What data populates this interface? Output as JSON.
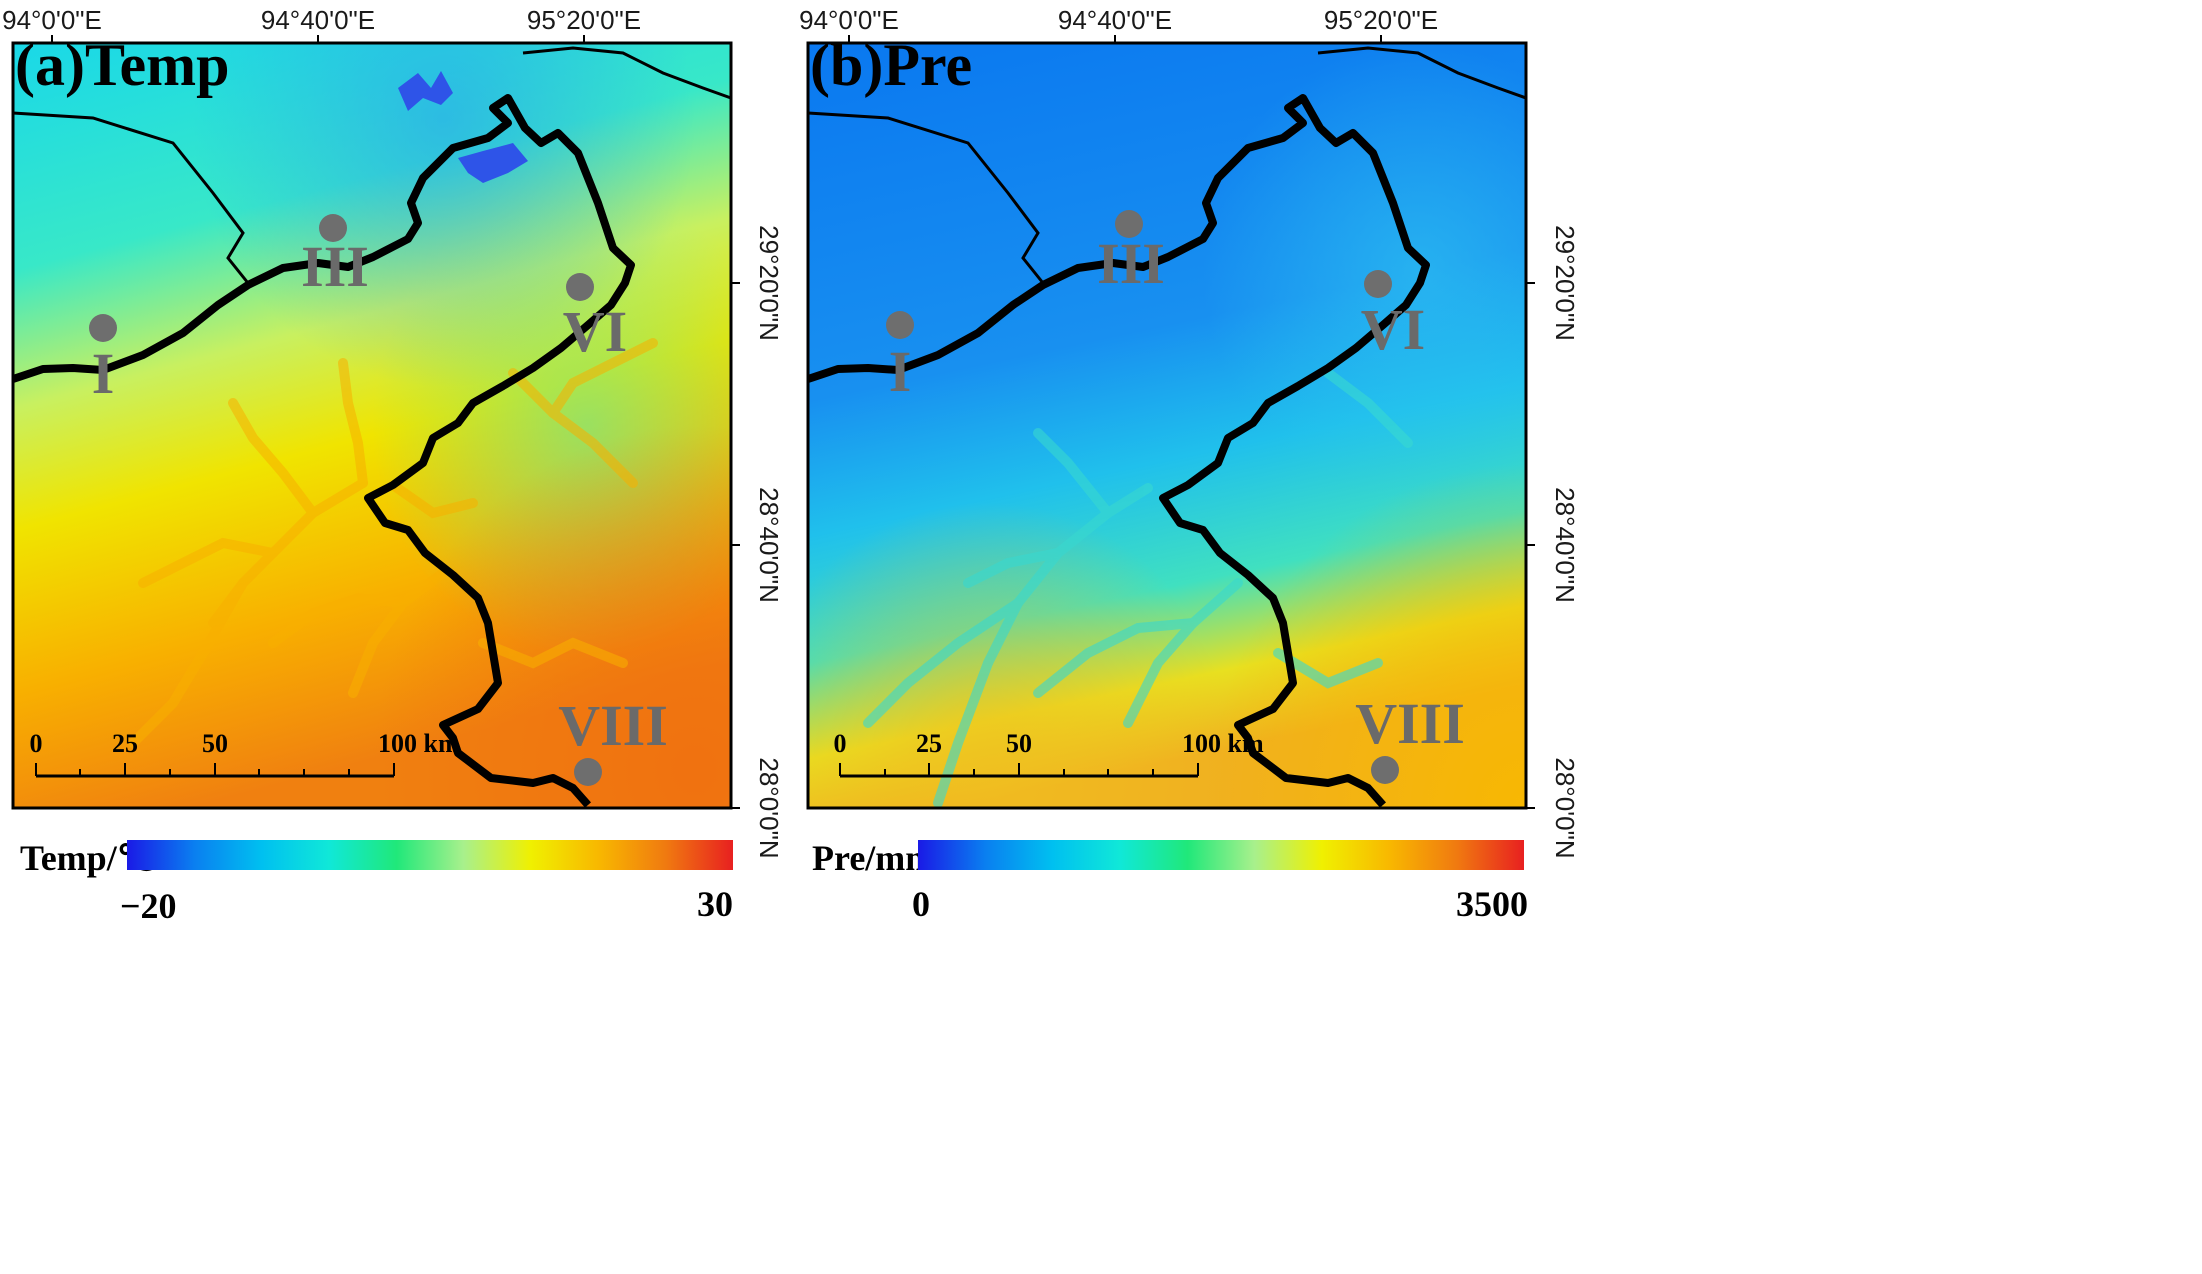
{
  "panels": [
    {
      "id": "a",
      "title": "(a)Temp",
      "colorbar": {
        "label": "Temp/℃",
        "min": "−20",
        "max": "30",
        "colors": [
          "#1a1ae6",
          "#0a7ff0",
          "#00c0f0",
          "#10e8d8",
          "#20e87a",
          "#a8f08c",
          "#f0f000",
          "#f8b800",
          "#f07a10",
          "#e82020"
        ]
      }
    },
    {
      "id": "b",
      "title": "(b)Pre",
      "colorbar": {
        "label": "Pre/mm",
        "min": "0",
        "max": "3500",
        "colors": [
          "#1a1ae6",
          "#0a7ff0",
          "#00c0f0",
          "#10e8d8",
          "#20e87a",
          "#a8f08c",
          "#f0f000",
          "#f8b800",
          "#f07a10",
          "#e82020"
        ]
      }
    }
  ],
  "x_ticks": [
    "94°0'0\"E",
    "94°40'0\"E",
    "95°20'0\"E"
  ],
  "y_ticks": [
    "29°20'0\"N",
    "28°40'0\"N",
    "28°0'0\"N"
  ],
  "stations": [
    "I",
    "III",
    "VI",
    "VIII"
  ],
  "scalebar": {
    "labels": [
      "0",
      "25",
      "50",
      "100 km"
    ]
  },
  "colors": {
    "station": "#6e6e6e",
    "river": "#000000",
    "boundary": "#000000"
  }
}
